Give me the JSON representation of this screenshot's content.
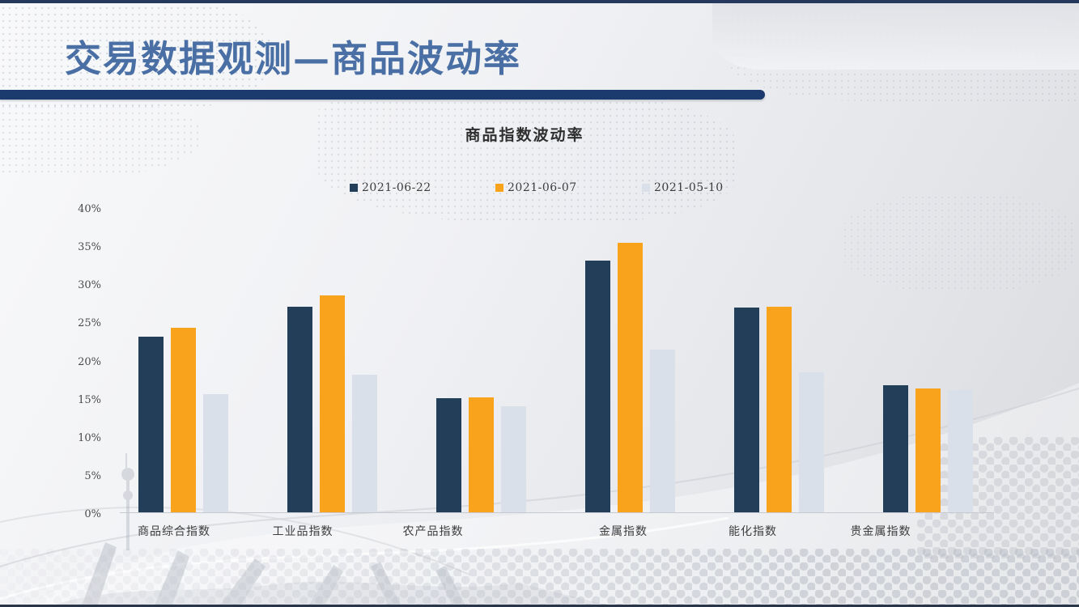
{
  "slide": {
    "title": "交易数据观测—商品波动率"
  },
  "chart_data": {
    "type": "bar",
    "title": "商品指数波动率",
    "categories": [
      "商品综合指数",
      "工业品指数",
      "农产品指数",
      "金属指数",
      "能化指数",
      "贵金属指数"
    ],
    "series": [
      {
        "name": "2021-06-22",
        "color": "#233e59",
        "values": [
          23.0,
          27.0,
          15.0,
          33.0,
          26.8,
          16.7
        ]
      },
      {
        "name": "2021-06-07",
        "color": "#f9a21b",
        "values": [
          24.2,
          28.4,
          15.1,
          35.3,
          27.0,
          16.2
        ]
      },
      {
        "name": "2021-05-10",
        "color": "#d9e0e9",
        "values": [
          15.5,
          18.0,
          13.9,
          21.3,
          18.4,
          16.0
        ]
      }
    ],
    "ylim": [
      0,
      40
    ],
    "ytick_step": 5,
    "ytick_suffix": "%",
    "legend_position": "top",
    "grid": false
  },
  "colors": {
    "title_blue": "#4a6fa5",
    "rule_navy": "#1b3a6e",
    "axis_line": "#c6c9cf"
  }
}
